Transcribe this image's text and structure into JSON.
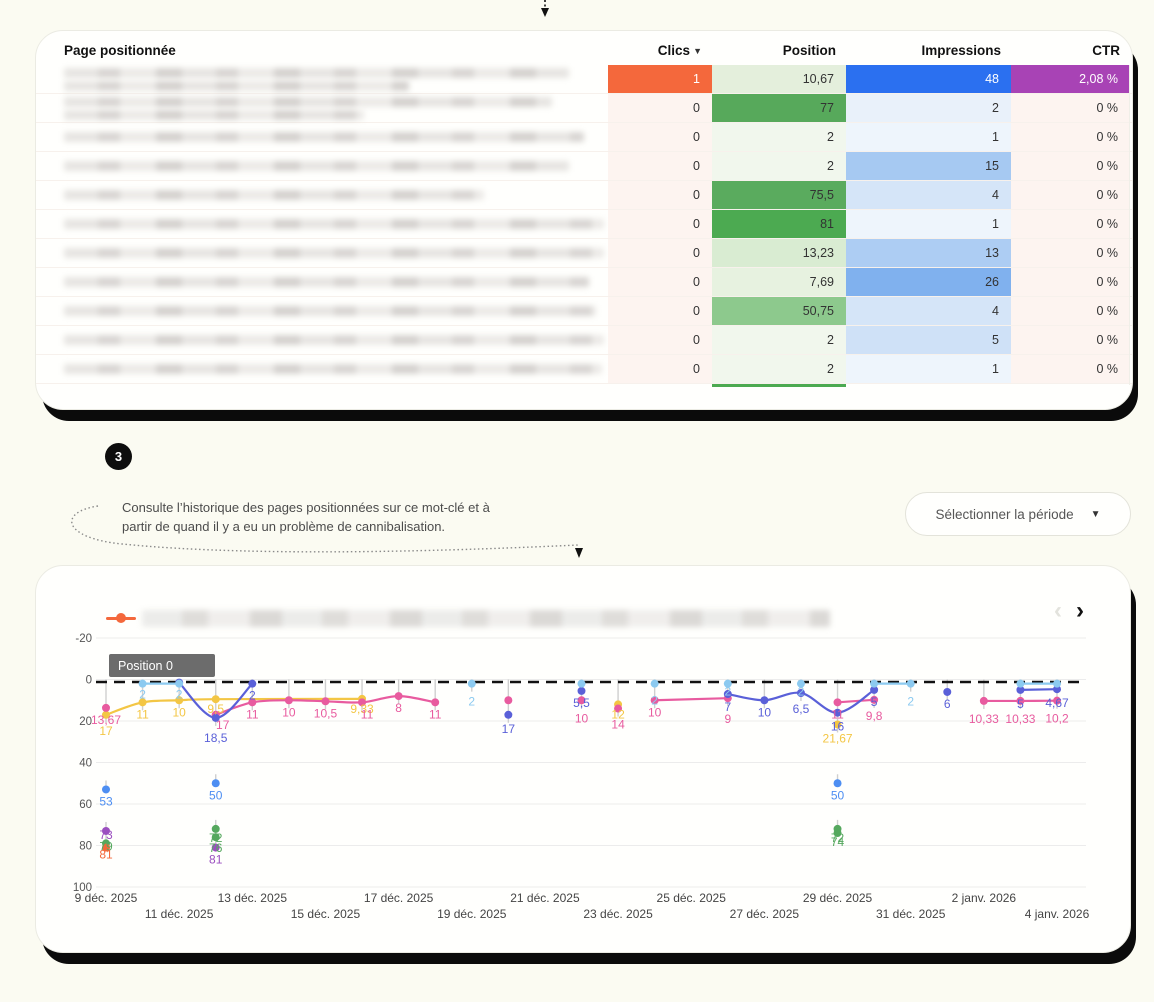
{
  "top_arrow": {
    "glyph": "▼"
  },
  "table": {
    "header": {
      "page": "Page positionnée",
      "clics": "Clics",
      "position": "Position",
      "impressions": "Impressions",
      "ctr": "CTR",
      "sort_caret": "▼"
    },
    "zero_bg": "#fdf4f0",
    "rows": [
      {
        "blur": [
          505,
          345
        ],
        "clics": "1",
        "clics_bg": "#f4683c",
        "clics_fg": "#ffffff",
        "position": "10,67",
        "pos_bg": "#e4efdc",
        "impressions": "48",
        "imp_bg": "#2b70f0",
        "imp_fg": "#ffffff",
        "ctr": "2,08 %",
        "ctr_bg": "#a843b5",
        "ctr_fg": "#ffffff"
      },
      {
        "blur": [
          488,
          300
        ],
        "clics": "0",
        "position": "77",
        "pos_bg": "#57a95b",
        "impressions": "2",
        "imp_bg": "#e9f1fa",
        "ctr": "0 %"
      },
      {
        "blur": [
          520
        ],
        "clics": "0",
        "position": "2",
        "pos_bg": "#f1f7ed",
        "impressions": "1",
        "imp_bg": "#eef5fc",
        "ctr": "0 %"
      },
      {
        "blur": [
          505
        ],
        "clics": "0",
        "position": "2",
        "pos_bg": "#f1f7ed",
        "impressions": "15",
        "imp_bg": "#a6c9f2",
        "ctr": "0 %"
      },
      {
        "blur": [
          420
        ],
        "clics": "0",
        "position": "75,5",
        "pos_bg": "#5aab5e",
        "impressions": "4",
        "imp_bg": "#d5e5f8",
        "ctr": "0 %"
      },
      {
        "blur": [
          540
        ],
        "clics": "0",
        "position": "81",
        "pos_bg": "#4caa51",
        "impressions": "1",
        "imp_bg": "#eef5fc",
        "ctr": "0 %"
      },
      {
        "blur": [
          540
        ],
        "clics": "0",
        "position": "13,23",
        "pos_bg": "#d9ecd2",
        "impressions": "13",
        "imp_bg": "#adcdf3",
        "ctr": "0 %"
      },
      {
        "blur": [
          525
        ],
        "clics": "0",
        "position": "7,69",
        "pos_bg": "#e7f2e0",
        "impressions": "26",
        "imp_bg": "#80b1ee",
        "ctr": "0 %"
      },
      {
        "blur": [
          532
        ],
        "clics": "0",
        "position": "50,75",
        "pos_bg": "#8dc98d",
        "impressions": "4",
        "imp_bg": "#d5e5f8",
        "ctr": "0 %"
      },
      {
        "blur": [
          540
        ],
        "clics": "0",
        "position": "2",
        "pos_bg": "#f1f7ed",
        "impressions": "5",
        "imp_bg": "#cfe1f7",
        "ctr": "0 %"
      },
      {
        "blur": [
          538
        ],
        "clics": "0",
        "position": "2",
        "pos_bg": "#f1f7ed",
        "impressions": "1",
        "imp_bg": "#eef5fc",
        "ctr": "0 %"
      }
    ]
  },
  "step": {
    "number": "3",
    "line1": "Consulte l’historique des pages positionnées sur ce mot-clé et à",
    "line2": "partir de quand il y a eu un problème de cannibalisation."
  },
  "period_button": {
    "label": "Sélectionner la période",
    "caret": "▼"
  },
  "chart_ui": {
    "tooltip": "Position 0",
    "pager_prev": "‹",
    "pager_next": "›",
    "legend_color": "#f4683c"
  },
  "chart_data": {
    "type": "line",
    "x_axis": {
      "unit": "date",
      "start": "9 déc. 2025",
      "end": "4 janv. 2026"
    },
    "x_ticks": [
      {
        "d": 0,
        "label": "9 déc. 2025",
        "row": 0
      },
      {
        "d": 2,
        "label": "11 déc. 2025",
        "row": 1
      },
      {
        "d": 4,
        "label": "13 déc. 2025",
        "row": 0
      },
      {
        "d": 6,
        "label": "15 déc. 2025",
        "row": 1
      },
      {
        "d": 8,
        "label": "17 déc. 2025",
        "row": 0
      },
      {
        "d": 10,
        "label": "19 déc. 2025",
        "row": 1
      },
      {
        "d": 12,
        "label": "21 déc. 2025",
        "row": 0
      },
      {
        "d": 14,
        "label": "23 déc. 2025",
        "row": 1
      },
      {
        "d": 16,
        "label": "25 déc. 2025",
        "row": 0
      },
      {
        "d": 18,
        "label": "27 déc. 2025",
        "row": 1
      },
      {
        "d": 20,
        "label": "29 déc. 2025",
        "row": 0
      },
      {
        "d": 22,
        "label": "31 déc. 2025",
        "row": 1
      },
      {
        "d": 24,
        "label": "2 janv. 2026",
        "row": 0
      },
      {
        "d": 26,
        "label": "4 janv. 2026",
        "row": 1
      }
    ],
    "y_ticks": [
      {
        "v": -20,
        "label": "-20"
      },
      {
        "v": 0,
        "label": "0"
      },
      {
        "v": 20,
        "label": "20"
      },
      {
        "v": 40,
        "label": "40"
      },
      {
        "v": 60,
        "label": "60"
      },
      {
        "v": 80,
        "label": "80"
      },
      {
        "v": 100,
        "label": "100"
      }
    ],
    "ylim": [
      -20,
      100
    ],
    "y_inverted": true,
    "zero_line": 0,
    "series": [
      {
        "name": "page-yellow",
        "color": "#f3c644",
        "groups": [
          [
            {
              "d": 0,
              "v": 17,
              "l": "17",
              "ldy": 20
            },
            {
              "d": 1,
              "v": 11,
              "l": "11"
            },
            {
              "d": 2,
              "v": 10,
              "l": "10"
            },
            {
              "d": 3,
              "v": 9.5,
              "l": "9,5",
              "ldy": 14
            },
            {
              "d": 7,
              "v": 9.33,
              "l": "9,33",
              "ldy": 14
            }
          ],
          [
            {
              "d": 14,
              "v": 12,
              "l": "12",
              "ldy": 14
            }
          ],
          [
            {
              "d": 20,
              "v": 21.67,
              "l": "21,67",
              "ldy": 18
            }
          ]
        ]
      },
      {
        "name": "page-pink",
        "color": "#e85b9f",
        "groups": [
          [
            {
              "d": 0,
              "v": 13.67,
              "l": "13,67"
            }
          ],
          [
            {
              "d": 3,
              "v": 17,
              "l": "17",
              "ldy": 14,
              "ldx": 7
            },
            {
              "d": 4,
              "v": 11,
              "l": "11"
            },
            {
              "d": 5,
              "v": 10,
              "l": "10"
            },
            {
              "d": 6,
              "v": 10.5,
              "l": "10,5"
            },
            {
              "d": 7,
              "v": 11,
              "l": "11",
              "ldx": 5
            },
            {
              "d": 8,
              "v": 8,
              "l": "8"
            },
            {
              "d": 9,
              "v": 11,
              "l": "11"
            }
          ],
          [
            {
              "d": 11,
              "v": 10
            }
          ],
          [
            {
              "d": 13,
              "v": 10,
              "l": "10",
              "ldy": 22
            }
          ],
          [
            {
              "d": 14,
              "v": 14,
              "l": "14",
              "ldy": 20
            }
          ],
          [
            {
              "d": 15,
              "v": 10,
              "l": "10",
              "ldy": 16
            },
            {
              "d": 17,
              "v": 9,
              "l": "9",
              "ldy": 25
            }
          ],
          [
            {
              "d": 20,
              "v": 11,
              "l": "11",
              "ldy": 16
            },
            {
              "d": 21,
              "v": 9.8,
              "l": "9,8",
              "ldy": 20
            }
          ],
          [
            {
              "d": 24,
              "v": 10.33,
              "l": "10,33",
              "ldy": 22
            },
            {
              "d": 25,
              "v": 10.33,
              "l": "10,33",
              "ldy": 22
            },
            {
              "d": 26,
              "v": 10.2,
              "l": "10,2",
              "ldy": 22
            }
          ]
        ]
      },
      {
        "name": "page-indigo",
        "color": "#5a60d8",
        "groups": [
          [
            {
              "d": 2,
              "v": 1.5
            },
            {
              "d": 3,
              "v": 18.5,
              "l": "18,5",
              "ldy": 24
            },
            {
              "d": 4,
              "v": 2,
              "l": "2"
            }
          ],
          [
            {
              "d": 11,
              "v": 17,
              "l": "17",
              "ldy": 18
            }
          ],
          [
            {
              "d": 13,
              "v": 5.5,
              "l": "5,5"
            }
          ],
          [
            {
              "d": 17,
              "v": 7,
              "l": "7",
              "ldy": 17
            },
            {
              "d": 18,
              "v": 10,
              "l": "10"
            },
            {
              "d": 19,
              "v": 6.5,
              "l": "6,5",
              "ldy": 20
            },
            {
              "d": 20,
              "v": 16,
              "l": "16",
              "ldy": 18
            },
            {
              "d": 21,
              "v": 5,
              "l": "5"
            }
          ],
          [
            {
              "d": 23,
              "v": 6,
              "l": "6"
            }
          ],
          [
            {
              "d": 25,
              "v": 5,
              "l": "5",
              "ldy": 18
            },
            {
              "d": 26,
              "v": 4.67,
              "l": "4,67",
              "ldy": 18
            }
          ]
        ]
      },
      {
        "name": "page-lightblue",
        "color": "#8ccaf0",
        "groups": [
          [
            {
              "d": 1,
              "v": 2,
              "l": "2",
              "ldy": 15
            },
            {
              "d": 2,
              "v": 2,
              "l": "2",
              "ldy": 15
            }
          ],
          [
            {
              "d": 10,
              "v": 2,
              "l": "2",
              "ldy": 22
            }
          ],
          [
            {
              "d": 13,
              "v": 2
            }
          ],
          [
            {
              "d": 15,
              "v": 2,
              "l": "2",
              "ldy": 21
            }
          ],
          [
            {
              "d": 17,
              "v": 2,
              "l": "2",
              "ldy": 12
            }
          ],
          [
            {
              "d": 19,
              "v": 2,
              "l": "2",
              "ldy": 12
            }
          ],
          [
            {
              "d": 21,
              "v": 2
            },
            {
              "d": 22,
              "v": 2,
              "l": "2",
              "ldy": 22
            }
          ],
          [
            {
              "d": 25,
              "v": 2
            },
            {
              "d": 26,
              "v": 2
            }
          ]
        ]
      },
      {
        "name": "page-blue",
        "color": "#4d8ef2",
        "groups": [
          [
            {
              "d": 0,
              "v": 53,
              "l": "53"
            }
          ],
          [
            {
              "d": 3,
              "v": 50,
              "l": "50"
            }
          ],
          [
            {
              "d": 20,
              "v": 50,
              "l": "50"
            }
          ]
        ]
      },
      {
        "name": "page-green",
        "color": "#55a85e",
        "groups": [
          [
            {
              "d": 0,
              "v": 79,
              "l": "79",
              "ldy": 7
            }
          ],
          [
            {
              "d": 3,
              "v": 72,
              "l": "72",
              "ldy": 13
            }
          ],
          [
            {
              "d": 3,
              "v": 76,
              "l": "76",
              "ldy": 15
            }
          ],
          [
            {
              "d": 20,
              "v": 72,
              "l": "72",
              "ldy": 13
            }
          ],
          [
            {
              "d": 20,
              "v": 74,
              "l": "74",
              "ldy": 13
            }
          ]
        ]
      },
      {
        "name": "page-violet",
        "color": "#9b4fc0",
        "groups": [
          [
            {
              "d": 0,
              "v": 73,
              "l": "73",
              "ldy": 8
            }
          ],
          [
            {
              "d": 3,
              "v": 81,
              "l": "81",
              "ldy": 16
            }
          ]
        ]
      },
      {
        "name": "page-orange",
        "color": "#f4683c",
        "groups": [
          [
            {
              "d": 0,
              "v": 81,
              "l": "81",
              "ldy": 11
            }
          ]
        ]
      }
    ]
  }
}
